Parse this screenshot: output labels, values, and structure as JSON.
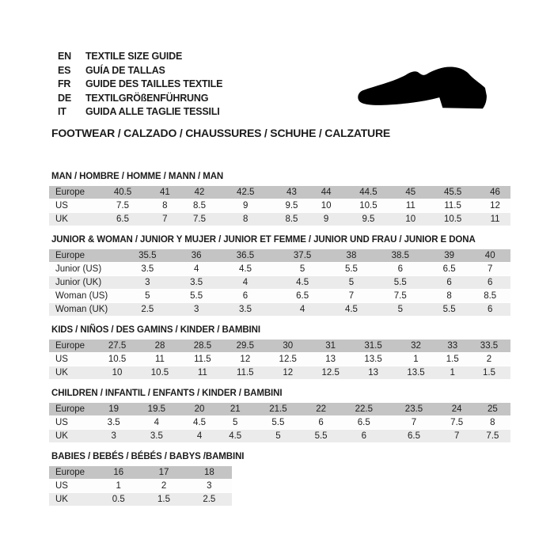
{
  "page": {
    "languages": [
      {
        "code": "EN",
        "label": "TEXTILE SIZE GUIDE"
      },
      {
        "code": "ES",
        "label": "GUÍA DE TALLAS"
      },
      {
        "code": "FR",
        "label": "GUIDE DES TAILLES TEXTILE"
      },
      {
        "code": "DE",
        "label": "TEXTILGRÖßENFÜHRUNG"
      },
      {
        "code": "IT",
        "label": "GUIDA ALLE TAGLIE TESSILI"
      }
    ],
    "category_line": "FOOTWEAR / CALZADO / CHAUSSURES / SCHUHE / CALZATURE",
    "shoe_icon": "dress-shoe-silhouette",
    "colors": {
      "header_row": "#c4c4c4",
      "alt_row": "#ebebeb",
      "text": "#1c1c1c",
      "background": "#ffffff",
      "shoe": "#000000"
    }
  },
  "size_tables": [
    {
      "title": "MAN / HOMBRE / HOMME / MANN / MAN",
      "rows": [
        {
          "label": "Europe",
          "values": [
            "40.5",
            "41",
            "42",
            "42.5",
            "43",
            "44",
            "44.5",
            "45",
            "45.5",
            "46"
          ]
        },
        {
          "label": "US",
          "values": [
            "7.5",
            "8",
            "8.5",
            "9",
            "9.5",
            "10",
            "10.5",
            "11",
            "11.5",
            "12"
          ]
        },
        {
          "label": "UK",
          "values": [
            "6.5",
            "7",
            "7.5",
            "8",
            "8.5",
            "9",
            "9.5",
            "10",
            "10.5",
            "11"
          ]
        }
      ]
    },
    {
      "title": "JUNIOR & WOMAN / JUNIOR Y MUJER / JUNIOR ET FEMME / JUNIOR UND FRAU / JUNIOR E DONA",
      "rows": [
        {
          "label": "Europe",
          "values": [
            "35.5",
            "36",
            "36.5",
            "37.5",
            "38",
            "38.5",
            "39",
            "40"
          ]
        },
        {
          "label": "Junior (US)",
          "values": [
            "3.5",
            "4",
            "4.5",
            "5",
            "5.5",
            "6",
            "6.5",
            "7"
          ]
        },
        {
          "label": "Junior (UK)",
          "values": [
            "3",
            "3.5",
            "4",
            "4.5",
            "5",
            "5.5",
            "6",
            "6"
          ]
        },
        {
          "label": "Woman (US)",
          "values": [
            "5",
            "5.5",
            "6",
            "6.5",
            "7",
            "7.5",
            "8",
            "8.5"
          ]
        },
        {
          "label": "Woman (UK)",
          "values": [
            "2.5",
            "3",
            "3.5",
            "4",
            "4.5",
            "5",
            "5.5",
            "6"
          ]
        }
      ]
    },
    {
      "title": "KIDS / NIÑOS / DES GAMINS / KINDER / BAMBINI",
      "rows": [
        {
          "label": "Europe",
          "values": [
            "27.5",
            "28",
            "28.5",
            "29.5",
            "30",
            "31",
            "31.5",
            "32",
            "33",
            "33.5"
          ]
        },
        {
          "label": "US",
          "values": [
            "10.5",
            "11",
            "11.5",
            "12",
            "12.5",
            "13",
            "13.5",
            "1",
            "1.5",
            "2"
          ]
        },
        {
          "label": "UK",
          "values": [
            "10",
            "10.5",
            "11",
            "11.5",
            "12",
            "12.5",
            "13",
            "13.5",
            "1",
            "1.5"
          ]
        }
      ]
    },
    {
      "title": "CHILDREN / INFANTIL / ENFANTS / KINDER / BAMBINI",
      "rows": [
        {
          "label": "Europe",
          "values": [
            "19",
            "19.5",
            "20",
            "21",
            "21.5",
            "22",
            "22.5",
            "23.5",
            "24",
            "25"
          ]
        },
        {
          "label": "US",
          "values": [
            "3.5",
            "4",
            "4.5",
            "5",
            "5.5",
            "6",
            "6.5",
            "7",
            "7.5",
            "8"
          ]
        },
        {
          "label": "UK",
          "values": [
            "3",
            "3.5",
            "4",
            "4.5",
            "5",
            "5.5",
            "6",
            "6.5",
            "7",
            "7.5"
          ]
        }
      ]
    },
    {
      "title": "BABIES  / BEBÉS / BÉBÉS / BABYS /BAMBINI",
      "rows": [
        {
          "label": "Europe",
          "values": [
            "16",
            "17",
            "18"
          ]
        },
        {
          "label": "US",
          "values": [
            "1",
            "2",
            "3"
          ]
        },
        {
          "label": "UK",
          "values": [
            "0.5",
            "1.5",
            "2.5"
          ]
        }
      ]
    }
  ]
}
